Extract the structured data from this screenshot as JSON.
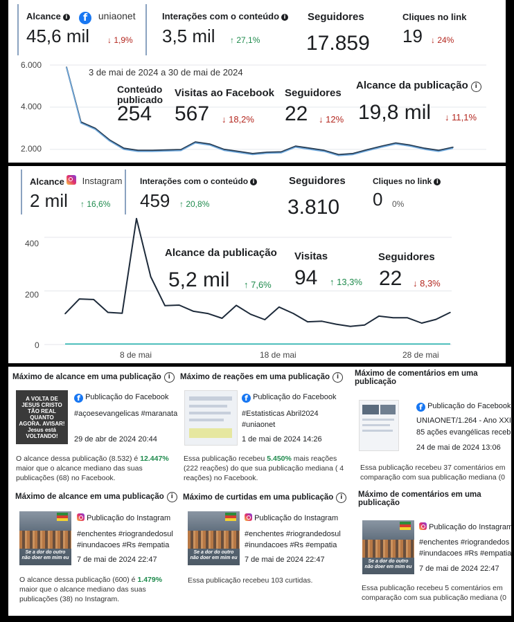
{
  "facebook": {
    "account": "uniaonet",
    "metrics": [
      {
        "label": "Alcance",
        "value": "45,6 mil",
        "change": "↓ 1,9%"
      },
      {
        "label": "Interações com o conteúdo",
        "value": "3,5 mil",
        "change": "↑ 27,1%"
      },
      {
        "label": "Seguidores",
        "value": "17.859"
      },
      {
        "label": "Cliques no link",
        "value": "19",
        "change": "↓ 24%"
      }
    ],
    "overlay": {
      "date_range": "3 de mai de 2024 a 30 de mai de 2024",
      "content_label_1": "Conteúdo",
      "content_label_2": "publicado",
      "content_value": "254",
      "visits_label": "Visitas ao Facebook",
      "visits_value": "567",
      "visits_change": "↓ 18,2%",
      "followers_label": "Seguidores",
      "followers_value": "22",
      "followers_change": "↓ 12%",
      "reach_label": "Alcance da publicação",
      "reach_value": "19,8 mil",
      "reach_change": "↓ 11,1%"
    }
  },
  "instagram": {
    "account": "Instagram",
    "metrics": [
      {
        "label": "Alcance",
        "value": "2 mil",
        "change": "↑ 16,6%"
      },
      {
        "label": "Interações com o conteúdo",
        "value": "459",
        "change": "↑ 20,8%"
      },
      {
        "label": "Seguidores",
        "value": "3.810"
      },
      {
        "label": "Cliques no link",
        "value": "0",
        "change": "0%"
      }
    ],
    "overlay": {
      "reach_label": "Alcance da publicação",
      "reach_value": "5,2 mil",
      "reach_change": "↑ 7,6%",
      "visits_label": "Visitas",
      "visits_value": "94",
      "visits_change": "↑ 13,3%",
      "followers_label": "Seguidores",
      "followers_value": "22",
      "followers_change": "↓ 8,3%"
    }
  },
  "chart_data": [
    {
      "type": "line",
      "ylim": [
        1700,
        6000
      ],
      "yticks": [
        "6.000",
        "4.000",
        "2.000"
      ],
      "series": [
        {
          "values": [
            5900,
            3300,
            3000,
            2450,
            2050,
            1950,
            1950,
            1970,
            1990,
            2350,
            2250,
            2000,
            1900,
            1800,
            1860,
            1880,
            2150,
            2050,
            1950,
            1750,
            1800,
            1980,
            2150,
            2300,
            2200,
            2050,
            1950,
            2100
          ]
        },
        {
          "values": [
            5900,
            3250,
            2950,
            2400,
            2000,
            1900,
            1900,
            1920,
            1940,
            2300,
            2200,
            1950,
            1850,
            1750,
            1810,
            1830,
            2100,
            2000,
            1900,
            1700,
            1750,
            1930,
            2100,
            2250,
            2150,
            2000,
            1900,
            2050
          ]
        }
      ]
    },
    {
      "type": "line",
      "ylim": [
        0,
        480
      ],
      "yticks": [
        "400",
        "200",
        "0"
      ],
      "xticks": [
        "8 de mai",
        "18 de mai",
        "28 de mai"
      ],
      "series": [
        {
          "values": [
            115,
            170,
            168,
            120,
            117,
            470,
            253,
            145,
            147,
            124,
            116,
            98,
            146,
            113,
            93,
            140,
            116,
            85,
            87,
            76,
            68,
            73,
            106,
            100,
            100,
            80,
            94,
            120
          ]
        },
        {
          "values": [
            2,
            2,
            2,
            2,
            2,
            2,
            2,
            2,
            2,
            2,
            2,
            2,
            2,
            2,
            2,
            2,
            2,
            2,
            2,
            2,
            2,
            2,
            2,
            2,
            2,
            2,
            2,
            2
          ]
        }
      ]
    }
  ],
  "cards": {
    "fb": [
      {
        "title": "Máximo de alcance em uma publicação",
        "source": "Publicação do Facebook",
        "text": "#açoesevangelicas #maranata",
        "date": "29 de abr de 2024 20:44",
        "desc_pre": "O alcance dessa publicação (8.532) é ",
        "desc_hl": "12.447%",
        "desc_post": " maior que o alcance mediano das suas publicações (68) no Facebook.",
        "thumb_text": "A VOLTA DE JESUS CRISTO TÃO REAL QUANTO AGORA. AVISAR! Jesus está VOLTANDO!"
      },
      {
        "title": "Máximo de reações em uma publicação",
        "source": "Publicação do Facebook",
        "text": "#Estatisticas Abril2024",
        "text2": "#uniaonet",
        "date": "1 de mai de 2024 14:26",
        "desc_pre": "Essa publicação recebeu ",
        "desc_hl": "5.450%",
        "desc_post": " mais reações (222 reações) do que sua publicação mediana ( 4 reações) no Facebook."
      },
      {
        "title": "Máximo de comentários em uma publicação",
        "source": "Publicação do Facebook",
        "text": "UNIAONET/1.264 - Ano XXI",
        "text2": "85 ações evangélicas recebi",
        "date": "24 de mai de 2024 13:06",
        "desc_pre": "Essa publicação recebeu 37 comentários em comparação com sua publicação mediana (0"
      }
    ],
    "ig": [
      {
        "title": "Máximo de alcance em uma publicação",
        "source": "Publicação do Instagram",
        "text": "#enchentes #riograndedosul",
        "text2": "#inundacoes #Rs #empatia",
        "date": "7 de mai de 2024 22:47",
        "desc_pre": "O alcance dessa publicação (600) é ",
        "desc_hl": "1.479%",
        "desc_post": " maior que o alcance mediano das suas publicações (38) no Instagram.",
        "thumb_text": "Se a dor do outro não doer em mim eu"
      },
      {
        "title": "Máximo de curtidas em uma publicação",
        "source": "Publicação do Instagram",
        "text": "#enchentes #riograndedosul",
        "text2": "#inundacoes #Rs #empatia",
        "date": "7 de mai de 2024 22:47",
        "desc_pre": "Essa publicação recebeu 103 curtidas.",
        "thumb_text": "Se a dor do outro não doer em mim eu"
      },
      {
        "title": "Máximo de comentários em uma publicação",
        "source": "Publicação do Instagram",
        "text": "#enchentes #riograndedos",
        "text2": "#inundacoes #Rs #empatia",
        "date": "7 de mai de 2024 22:47",
        "desc_pre": "Essa publicação recebeu 5 comentários em comparação com sua publicação mediana (0",
        "thumb_text": "Se a dor do outro não doer em mim eu"
      }
    ]
  }
}
